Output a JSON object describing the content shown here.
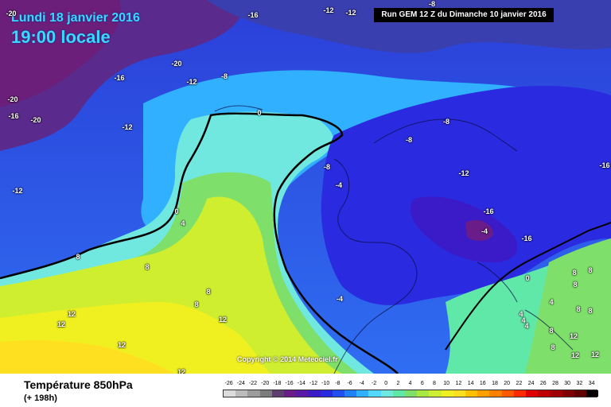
{
  "header": {
    "date": "Lundi 18 janvier 2016",
    "time": "19:00 locale",
    "run": "Run GEM 12 Z du Dimanche 10 janvier 2016"
  },
  "copyright": "Copyright © 2014 Meteociel.fr",
  "footer": {
    "parameter": "Température 850hPa",
    "lead_time": "(+ 198h)"
  },
  "legend": {
    "values": [
      "-26",
      "-24",
      "-22",
      "-20",
      "-18",
      "-16",
      "-14",
      "-12",
      "-10",
      "-8",
      "-6",
      "-4",
      "-2",
      "0",
      "2",
      "4",
      "6",
      "8",
      "10",
      "12",
      "14",
      "16",
      "18",
      "20",
      "22",
      "24",
      "26",
      "28",
      "30",
      "32",
      "34"
    ],
    "colors": [
      "#dcdcdc",
      "#bcbcbc",
      "#9c9c9c",
      "#7c7c7c",
      "#5c3f6e",
      "#6a1c88",
      "#5a1aa8",
      "#3b1ac8",
      "#2a2ae0",
      "#2050f0",
      "#2080f5",
      "#30b0ff",
      "#55d8ff",
      "#70e8e0",
      "#60e8a8",
      "#7ee06a",
      "#a8e840",
      "#d0ee30",
      "#f0f020",
      "#ffe020",
      "#ffc000",
      "#ffa000",
      "#ff8000",
      "#ff5a00",
      "#ff2a00",
      "#e00000",
      "#c00000",
      "#a00000",
      "#800000",
      "#600000",
      "#000000"
    ]
  },
  "isotherm_labels": [
    {
      "text": "-20"
    },
    {
      "text": "-16"
    },
    {
      "text": "-12"
    },
    {
      "text": "-12"
    },
    {
      "text": "-8"
    },
    {
      "text": "-20"
    },
    {
      "text": "-16"
    },
    {
      "text": "-12"
    },
    {
      "text": "-8"
    },
    {
      "text": "-20"
    },
    {
      "text": "-16"
    },
    {
      "text": "-20"
    },
    {
      "text": "-12"
    },
    {
      "text": "-12"
    },
    {
      "text": "0"
    },
    {
      "text": "-8"
    },
    {
      "text": "-8"
    },
    {
      "text": "-8"
    },
    {
      "text": "-16"
    },
    {
      "text": "-4"
    },
    {
      "text": "-12"
    },
    {
      "text": "-16"
    },
    {
      "text": "-4"
    },
    {
      "text": "-16"
    },
    {
      "text": "0"
    },
    {
      "text": "4"
    },
    {
      "text": "0"
    },
    {
      "text": "8"
    },
    {
      "text": "8"
    },
    {
      "text": "8"
    },
    {
      "text": "12"
    },
    {
      "text": "12"
    },
    {
      "text": "12"
    },
    {
      "text": "12"
    },
    {
      "text": "12"
    },
    {
      "text": "-4"
    },
    {
      "text": "8"
    },
    {
      "text": "4"
    },
    {
      "text": "4"
    },
    {
      "text": "8"
    },
    {
      "text": "8"
    },
    {
      "text": "4"
    },
    {
      "text": "8"
    },
    {
      "text": "12"
    },
    {
      "text": "8"
    },
    {
      "text": "12"
    },
    {
      "text": "4"
    },
    {
      "text": "8"
    },
    {
      "text": "8"
    },
    {
      "text": "8"
    },
    {
      "text": "12"
    }
  ]
}
